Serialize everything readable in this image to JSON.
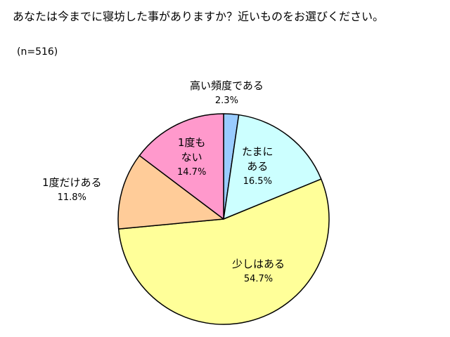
{
  "title": "あなたは今までに寝坊した事がありますか？近いものをお選びください。",
  "sample": "(n=516)",
  "chart_data": {
    "type": "pie",
    "start_angle_deg": 0,
    "direction": "clockwise",
    "slices": [
      {
        "label": "高い頻度である",
        "label_lines": [
          "高い頻度である"
        ],
        "value": 2.3,
        "value_text": "2.3%",
        "color": "#99ccff"
      },
      {
        "label": "たまにある",
        "label_lines": [
          "たまに",
          "ある"
        ],
        "value": 16.5,
        "value_text": "16.5%",
        "color": "#ccffff"
      },
      {
        "label": "少しはある",
        "label_lines": [
          "少しはある"
        ],
        "value": 54.7,
        "value_text": "54.7%",
        "color": "#ffff99"
      },
      {
        "label": "1度だけある",
        "label_lines": [
          "1度だけある"
        ],
        "value": 11.8,
        "value_text": "11.8%",
        "color": "#ffcc99"
      },
      {
        "label": "1度もない",
        "label_lines": [
          "1度も",
          "ない"
        ],
        "value": 14.7,
        "value_text": "14.7%",
        "color": "#ff99cc"
      }
    ],
    "edge_color": "#000000"
  }
}
